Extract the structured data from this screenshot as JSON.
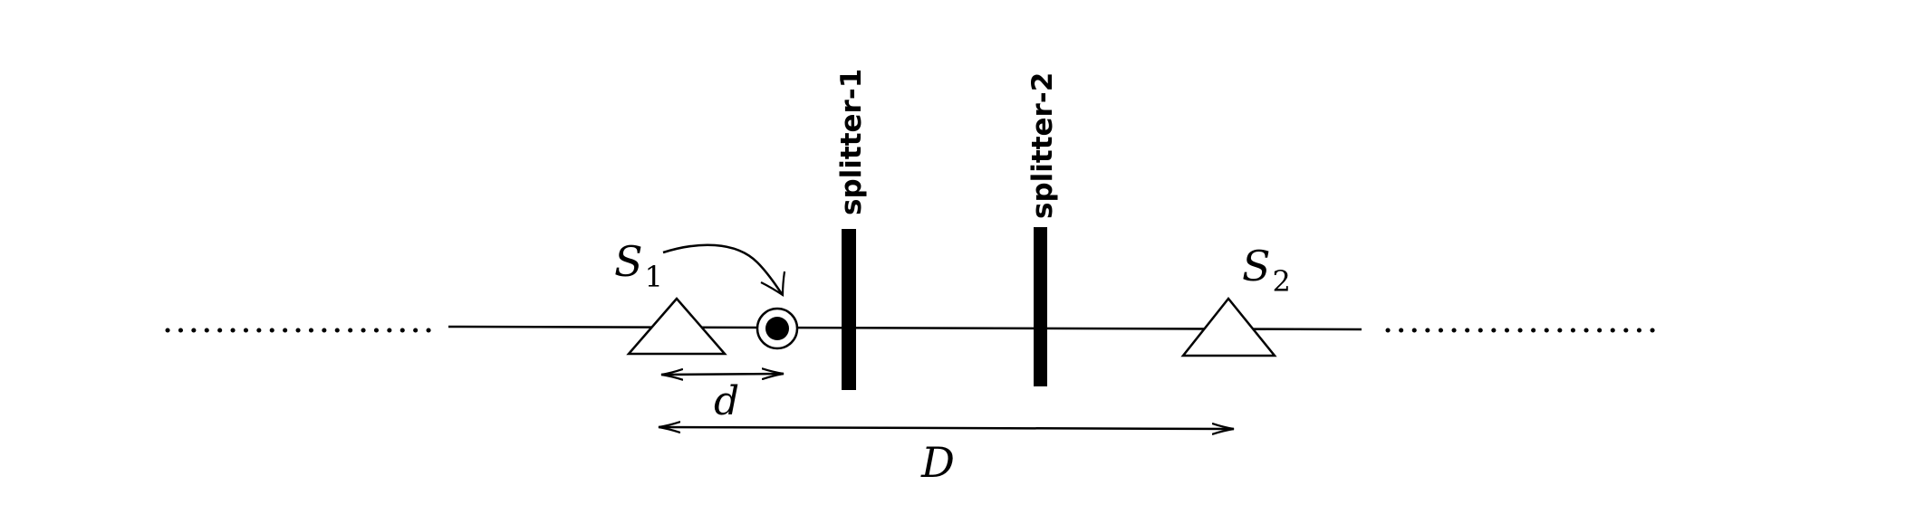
{
  "source_1": {
    "symbol": "S",
    "subscript": "1"
  },
  "source_2": {
    "symbol": "S",
    "subscript": "2"
  },
  "splitter_1": {
    "label": "splitter-1"
  },
  "splitter_2": {
    "label": "splitter-2"
  },
  "distance_small": {
    "label": "d"
  },
  "distance_large": {
    "label": "D"
  }
}
